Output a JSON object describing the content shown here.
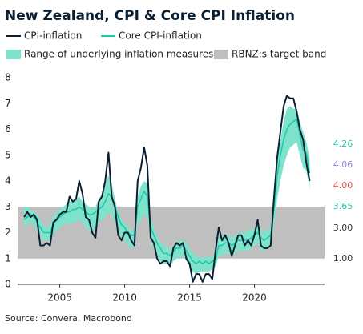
{
  "chart_data": {
    "type": "line",
    "title": "New Zealand, CPI & Core CPI Inflation",
    "source": "Source: Convera, Macrobond",
    "x": [
      2002.25,
      2002.5,
      2002.75,
      2003,
      2003.25,
      2003.5,
      2003.75,
      2004,
      2004.25,
      2004.5,
      2004.75,
      2005,
      2005.25,
      2005.5,
      2005.75,
      2006,
      2006.25,
      2006.5,
      2006.75,
      2007,
      2007.25,
      2007.5,
      2007.75,
      2008,
      2008.25,
      2008.5,
      2008.75,
      2009,
      2009.25,
      2009.5,
      2009.75,
      2010,
      2010.25,
      2010.5,
      2010.75,
      2011,
      2011.25,
      2011.5,
      2011.75,
      2012,
      2012.25,
      2012.5,
      2012.75,
      2013,
      2013.25,
      2013.5,
      2013.75,
      2014,
      2014.25,
      2014.5,
      2014.75,
      2015,
      2015.25,
      2015.5,
      2015.75,
      2016,
      2016.25,
      2016.5,
      2016.75,
      2017,
      2017.25,
      2017.5,
      2017.75,
      2018,
      2018.25,
      2018.5,
      2018.75,
      2019,
      2019.25,
      2019.5,
      2019.75,
      2020,
      2020.25,
      2020.5,
      2020.75,
      2021,
      2021.25,
      2021.5,
      2021.75,
      2022,
      2022.25,
      2022.5,
      2022.75,
      2023,
      2023.25,
      2023.5,
      2023.75,
      2024,
      2024.25
    ],
    "series": [
      {
        "name": "CPI-inflation",
        "color": "#0b1f33",
        "values": [
          2.6,
          2.8,
          2.6,
          2.7,
          2.5,
          1.5,
          1.5,
          1.6,
          1.5,
          2.4,
          2.5,
          2.7,
          2.8,
          2.8,
          3.4,
          3.2,
          3.3,
          4.0,
          3.5,
          2.6,
          2.5,
          2.0,
          1.8,
          3.2,
          3.4,
          4.0,
          5.1,
          3.4,
          3.0,
          1.9,
          1.7,
          2.0,
          2.0,
          1.7,
          1.5,
          4.0,
          4.5,
          5.3,
          4.6,
          1.8,
          1.6,
          1.0,
          0.8,
          0.9,
          0.9,
          0.7,
          1.4,
          1.6,
          1.5,
          1.6,
          1.0,
          0.8,
          0.1,
          0.4,
          0.4,
          0.1,
          0.4,
          0.4,
          0.2,
          1.3,
          2.2,
          1.7,
          1.9,
          1.6,
          1.1,
          1.5,
          1.9,
          1.9,
          1.5,
          1.7,
          1.5,
          1.9,
          2.5,
          1.5,
          1.4,
          1.4,
          1.5,
          3.3,
          4.9,
          5.9,
          6.9,
          7.3,
          7.2,
          7.2,
          6.7,
          6.0,
          5.6,
          4.7,
          4.0
        ]
      },
      {
        "name": "Core CPI-inflation",
        "color": "#1fcaa8",
        "values": [
          2.5,
          2.6,
          2.7,
          2.6,
          2.4,
          2.2,
          2.0,
          2.0,
          2.0,
          2.3,
          2.5,
          2.6,
          2.7,
          2.8,
          2.8,
          2.9,
          2.9,
          3.0,
          2.9,
          2.8,
          2.7,
          2.7,
          2.8,
          2.9,
          3.0,
          3.2,
          3.5,
          3.4,
          3.0,
          2.6,
          2.3,
          2.2,
          2.0,
          1.9,
          1.9,
          3.0,
          3.3,
          3.6,
          3.4,
          2.2,
          1.9,
          1.6,
          1.4,
          1.2,
          1.2,
          1.1,
          1.3,
          1.4,
          1.4,
          1.5,
          1.3,
          1.1,
          0.9,
          0.8,
          0.9,
          0.8,
          0.9,
          0.8,
          0.9,
          1.0,
          1.5,
          1.5,
          1.6,
          1.6,
          1.5,
          1.6,
          1.7,
          1.7,
          1.7,
          1.7,
          1.8,
          1.9,
          2.0,
          1.8,
          1.7,
          1.8,
          1.9,
          2.9,
          4.2,
          5.0,
          5.6,
          6.0,
          6.2,
          6.3,
          6.4,
          5.8,
          5.2,
          5.1,
          4.3
        ]
      }
    ],
    "range": {
      "name": "Range of underlying inflation measures",
      "color": "#7fe3cb",
      "upper": [
        3.0,
        3.0,
        2.9,
        2.8,
        2.7,
        2.5,
        2.3,
        2.2,
        2.3,
        2.6,
        2.8,
        2.9,
        3.0,
        3.1,
        3.2,
        3.2,
        3.3,
        3.4,
        3.2,
        3.1,
        3.0,
        2.9,
        3.0,
        3.3,
        3.5,
        3.9,
        4.2,
        3.9,
        3.3,
        2.8,
        2.5,
        2.4,
        2.2,
        2.1,
        2.1,
        3.4,
        3.8,
        4.0,
        3.9,
        2.6,
        2.2,
        1.8,
        1.6,
        1.5,
        1.5,
        1.3,
        1.5,
        1.6,
        1.7,
        1.7,
        1.6,
        1.4,
        1.2,
        1.1,
        1.1,
        1.0,
        1.1,
        1.0,
        1.1,
        1.3,
        1.8,
        1.9,
        1.9,
        1.9,
        1.8,
        1.9,
        2.0,
        2.0,
        2.0,
        2.1,
        2.1,
        2.2,
        2.3,
        2.2,
        2.0,
        2.1,
        2.2,
        3.5,
        4.8,
        5.6,
        6.3,
        6.8,
        6.9,
        6.8,
        6.8,
        6.3,
        5.9,
        5.5,
        4.9
      ],
      "lower": [
        2.2,
        2.3,
        2.4,
        2.3,
        2.1,
        1.9,
        1.7,
        1.7,
        1.7,
        1.9,
        2.1,
        2.2,
        2.3,
        2.4,
        2.3,
        2.4,
        2.4,
        2.5,
        2.4,
        2.2,
        2.1,
        2.0,
        2.2,
        2.4,
        2.5,
        2.6,
        2.8,
        2.7,
        2.4,
        2.1,
        1.8,
        1.7,
        1.5,
        1.4,
        1.4,
        2.3,
        2.5,
        2.7,
        2.6,
        1.7,
        1.4,
        1.1,
        0.9,
        0.8,
        0.8,
        0.7,
        0.9,
        1.0,
        1.0,
        1.1,
        0.9,
        0.7,
        0.5,
        0.4,
        0.5,
        0.5,
        0.5,
        0.5,
        0.6,
        0.7,
        1.1,
        1.1,
        1.2,
        1.2,
        1.1,
        1.2,
        1.3,
        1.3,
        1.3,
        1.3,
        1.4,
        1.5,
        1.6,
        1.3,
        1.3,
        1.4,
        1.5,
        2.2,
        3.3,
        4.0,
        4.6,
        5.0,
        5.3,
        5.4,
        5.5,
        5.0,
        4.5,
        4.4,
        3.7
      ]
    },
    "target_band": {
      "name": "RBNZ:s target band",
      "color": "#bfbfbf",
      "range": [
        1,
        3
      ]
    },
    "annotations": [
      {
        "text": "4.26",
        "color": "#2cc4a8"
      },
      {
        "text": "4.06",
        "color": "#8a7fd8"
      },
      {
        "text": "4.00",
        "color": "#e05a50"
      },
      {
        "text": "3.65",
        "color": "#2cc4a8"
      },
      {
        "text": "3.00",
        "color": "#333333"
      },
      {
        "text": "1.00",
        "color": "#333333"
      }
    ],
    "xlim": [
      2001.75,
      2025.4
    ],
    "xticks": [
      2005,
      2010,
      2015,
      2020
    ],
    "ylim": [
      0,
      8
    ],
    "yticks": [
      0,
      1,
      2,
      3,
      4,
      5,
      6,
      7,
      8
    ]
  }
}
